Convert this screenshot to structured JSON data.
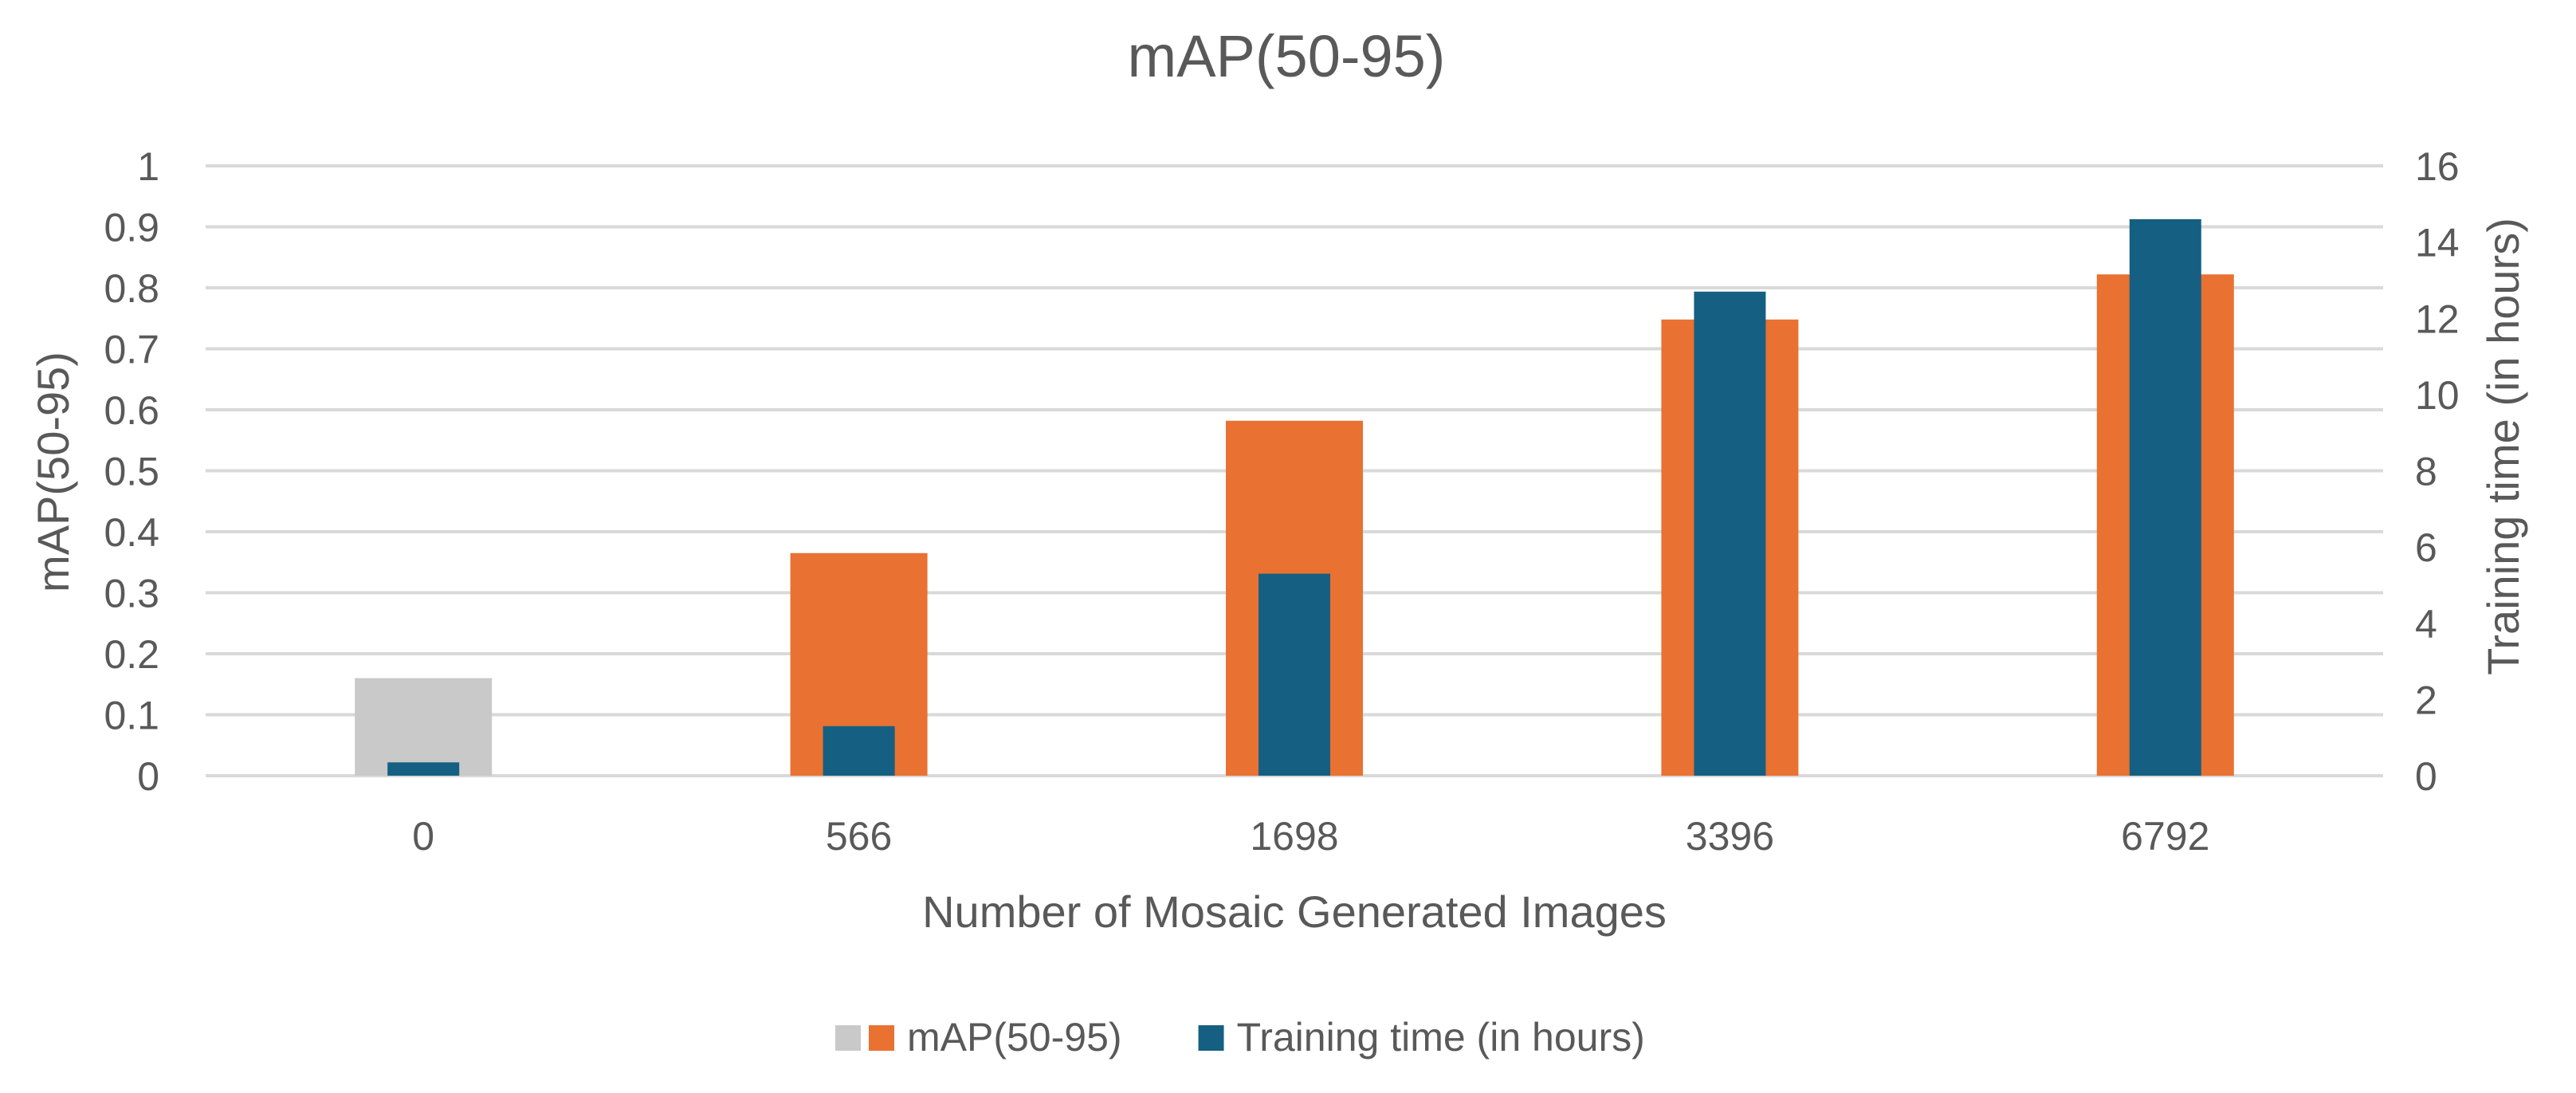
{
  "chart_data": {
    "type": "bar",
    "title": "mAP(50-95)",
    "xlabel": "Number of Mosaic Generated Images",
    "ylabel": "mAP(50-95)",
    "y2label": "Training time (in hours)",
    "categories": [
      "0",
      "566",
      "1698",
      "3396",
      "6792"
    ],
    "ylim": [
      0,
      1
    ],
    "y2lim": [
      0,
      16
    ],
    "yticks": [
      "0",
      "0.1",
      "0.2",
      "0.3",
      "0.4",
      "0.5",
      "0.6",
      "0.7",
      "0.8",
      "0.9",
      "1"
    ],
    "y2ticks": [
      "0",
      "2",
      "4",
      "6",
      "8",
      "10",
      "12",
      "14",
      "16"
    ],
    "grid": true,
    "legend_position": "bottom",
    "series": [
      {
        "name": "mAP(50-95)",
        "axis": "left",
        "values": [
          0.16,
          0.365,
          0.582,
          0.748,
          0.822
        ],
        "color": "#E97132",
        "point_colors": [
          "#C9C9C9",
          "#E97132",
          "#E97132",
          "#E97132",
          "#E97132"
        ]
      },
      {
        "name": "Training time (in hours)",
        "axis": "right",
        "values": [
          0.35,
          1.3,
          5.3,
          12.7,
          14.6
        ],
        "color": "#156082"
      }
    ],
    "legend": [
      {
        "label": "mAP(50-95)",
        "swatches": [
          "#C9C9C9",
          "#E97132"
        ]
      },
      {
        "label": "Training time (in hours)",
        "swatches": [
          "#156082"
        ]
      }
    ],
    "colors": {
      "text": "#595959",
      "grid": "#D9D9D9"
    }
  }
}
